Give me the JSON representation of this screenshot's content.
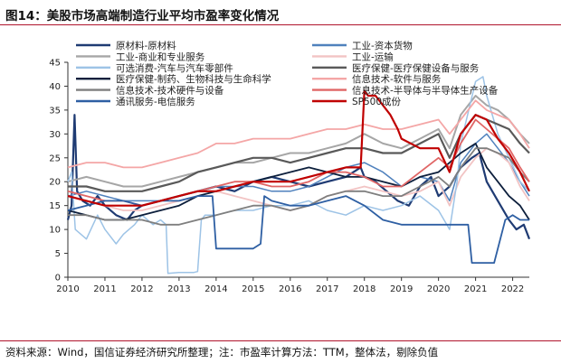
{
  "title": "图14：美股市场高端制造行业平均市盈率变化情况",
  "footnote": "资料来源：Wind，国信证券经济研究所整理；注：市盈率计算方法：TTM，整体法，剔除负值",
  "chart_data": {
    "type": "line",
    "title": "",
    "xlabel": "",
    "ylabel": "",
    "xlim": [
      2010.0,
      2022.45
    ],
    "ylim": [
      0,
      45
    ],
    "x_ticks": [
      "2010",
      "2011",
      "2012",
      "2013",
      "2014",
      "2015",
      "2016",
      "2017",
      "2018",
      "2019",
      "2020",
      "2021",
      "2022"
    ],
    "y_ticks": [
      "0",
      "5",
      "10",
      "15",
      "20",
      "25",
      "30",
      "35",
      "40",
      "45"
    ],
    "grid": false,
    "legend_position": "top",
    "series": [
      {
        "name": "原材料-原材料",
        "color": "#1f3b73",
        "width": 2.2,
        "x": [
          2010,
          2010.1,
          2010.18,
          2010.25,
          2010.4,
          2010.6,
          2010.8,
          2011,
          2011.3,
          2011.6,
          2011.8,
          2012,
          2012.5,
          2013,
          2013.5,
          2014,
          2014.5,
          2015,
          2015.5,
          2016,
          2016.5,
          2017,
          2017.5,
          2017.9,
          2018,
          2018.3,
          2018.6,
          2018.9,
          2019.2,
          2019.5,
          2019.8,
          2020,
          2020.3,
          2020.6,
          2020.9,
          2021.1,
          2021.3,
          2021.6,
          2021.9,
          2022.1,
          2022.3,
          2022.45
        ],
        "y": [
          12,
          15,
          34,
          18,
          16,
          15,
          17,
          15,
          13,
          12,
          14,
          15,
          16,
          17,
          18,
          19,
          18,
          20,
          21,
          20,
          19,
          20,
          21,
          23,
          21,
          20,
          18,
          16,
          15,
          19,
          21,
          17,
          19,
          23,
          25,
          26,
          20,
          16,
          12,
          10,
          11,
          8
        ]
      },
      {
        "name": "工业-资本货物",
        "color": "#4f81bd",
        "width": 1.5,
        "x": [
          2010,
          2010.5,
          2011,
          2011.5,
          2012,
          2012.5,
          2013,
          2013.5,
          2014,
          2014.5,
          2015,
          2015.5,
          2016,
          2016.5,
          2017,
          2017.5,
          2018,
          2018.5,
          2019,
          2019.5,
          2020,
          2020.3,
          2020.6,
          2021,
          2021.3,
          2021.6,
          2021.9,
          2022.2,
          2022.45
        ],
        "y": [
          17,
          18,
          17,
          16,
          16,
          16,
          17,
          18,
          19,
          19,
          19,
          18,
          18,
          19,
          21,
          23,
          24,
          22,
          19,
          21,
          20,
          16,
          24,
          28,
          30,
          27,
          24,
          20,
          17
        ]
      },
      {
        "name": "工业-商业和专业服务",
        "color": "#a6a6a6",
        "width": 2.0,
        "x": [
          2010,
          2010.5,
          2011,
          2011.5,
          2012,
          2012.5,
          2013,
          2013.5,
          2014,
          2014.5,
          2015,
          2015.5,
          2016,
          2016.5,
          2017,
          2017.5,
          2018,
          2018.5,
          2019,
          2019.5,
          2020,
          2020.3,
          2020.6,
          2021,
          2021.3,
          2021.6,
          2021.9,
          2022.2,
          2022.45
        ],
        "y": [
          20,
          21,
          20,
          19,
          19,
          20,
          21,
          22,
          23,
          24,
          24,
          25,
          26,
          26,
          27,
          28,
          30,
          28,
          27,
          29,
          31,
          27,
          34,
          38,
          36,
          35,
          33,
          30,
          28
        ]
      },
      {
        "name": "工业-运输",
        "color": "#f2c4c4",
        "width": 1.8,
        "x": [
          2010,
          2010.5,
          2011,
          2011.5,
          2012,
          2012.5,
          2013,
          2013.5,
          2014,
          2014.5,
          2015,
          2015.5,
          2016,
          2016.5,
          2017,
          2017.5,
          2018,
          2018.5,
          2019,
          2019.5,
          2020,
          2020.3,
          2020.6,
          2021,
          2021.3,
          2021.6,
          2021.9,
          2022.2,
          2022.45
        ],
        "y": [
          17,
          16,
          15,
          14,
          14,
          15,
          16,
          17,
          18,
          17,
          16,
          15,
          14,
          15,
          17,
          18,
          19,
          18,
          17,
          18,
          20,
          15,
          21,
          25,
          27,
          26,
          24,
          19,
          16
        ]
      },
      {
        "name": "可选消费-汽车与汽车零部件",
        "color": "#9dc3e6",
        "width": 1.5,
        "x": [
          2010,
          2010.1,
          2010.2,
          2010.5,
          2010.8,
          2011,
          2011.3,
          2011.5,
          2011.8,
          2012,
          2012.3,
          2012.5,
          2012.65,
          2012.7,
          2013,
          2013.2,
          2013.4,
          2013.5,
          2013.6,
          2013.7,
          2014,
          2014.5,
          2015,
          2015.5,
          2016,
          2016.5,
          2017,
          2017.5,
          2018,
          2018.5,
          2019,
          2019.5,
          2020,
          2020.3,
          2020.5,
          2020.6,
          2021,
          2021.2,
          2021.3,
          2021.6,
          2021.9,
          2022.2,
          2022.45
        ],
        "y": [
          20,
          22,
          10,
          8,
          13,
          10,
          7,
          9,
          11,
          13,
          11,
          12,
          11,
          0.8,
          1,
          1,
          1,
          1.2,
          12,
          13,
          13,
          14,
          14,
          15,
          15,
          16,
          14,
          13,
          15,
          14,
          15,
          17,
          14,
          10,
          20,
          28,
          41,
          42,
          38,
          30,
          25,
          20,
          18
        ]
      },
      {
        "name": "医疗保健-医疗保健设备与服务",
        "color": "#595959",
        "width": 2.2,
        "x": [
          2010,
          2010.5,
          2011,
          2011.5,
          2012,
          2012.5,
          2013,
          2013.5,
          2014,
          2014.5,
          2015,
          2015.5,
          2016,
          2016.5,
          2017,
          2017.5,
          2018,
          2018.5,
          2019,
          2019.5,
          2020,
          2020.3,
          2020.6,
          2021,
          2021.3,
          2021.6,
          2021.9,
          2022.2,
          2022.45
        ],
        "y": [
          19,
          19,
          18,
          18,
          18,
          19,
          20,
          22,
          23,
          24,
          25,
          25,
          24,
          25,
          26,
          27,
          27,
          26,
          26,
          28,
          30,
          25,
          30,
          34,
          33,
          32,
          31,
          28,
          26
        ]
      },
      {
        "name": "医疗保健-制药、生物科技与生命科学",
        "color": "#0d1f3c",
        "width": 1.8,
        "x": [
          2010,
          2010.5,
          2011,
          2011.5,
          2012,
          2012.5,
          2013,
          2013.5,
          2014,
          2014.5,
          2015,
          2015.5,
          2016,
          2016.5,
          2017,
          2017.5,
          2018,
          2018.5,
          2019,
          2019.5,
          2020,
          2020.3,
          2020.6,
          2021,
          2021.3,
          2021.6,
          2021.9,
          2022.2,
          2022.45
        ],
        "y": [
          14,
          13,
          12,
          12,
          13,
          14,
          15,
          17,
          18,
          19,
          20,
          21,
          22,
          23,
          22,
          21,
          21,
          20,
          19,
          21,
          22,
          24,
          26,
          28,
          23,
          20,
          17,
          15,
          12
        ]
      },
      {
        "name": "信息技术-软件与服务",
        "color": "#f4a6a6",
        "width": 1.8,
        "x": [
          2010,
          2010.5,
          2011,
          2011.5,
          2012,
          2012.5,
          2013,
          2013.5,
          2014,
          2014.5,
          2015,
          2015.5,
          2016,
          2016.5,
          2017,
          2017.5,
          2018,
          2018.5,
          2019,
          2019.5,
          2020,
          2020.3,
          2020.6,
          2021,
          2021.3,
          2021.6,
          2021.9,
          2022.2,
          2022.45
        ],
        "y": [
          23,
          24,
          24,
          23,
          23,
          24,
          25,
          26,
          28,
          28,
          29,
          29,
          29,
          30,
          31,
          31,
          32,
          31,
          31,
          32,
          33,
          30,
          33,
          37,
          35,
          34,
          33,
          30,
          27
        ]
      },
      {
        "name": "信息技术-技术硬件与设备",
        "color": "#7f7f7f",
        "width": 1.8,
        "x": [
          2010,
          2010.5,
          2011,
          2011.5,
          2012,
          2012.5,
          2013,
          2013.5,
          2014,
          2014.5,
          2015,
          2015.5,
          2016,
          2016.5,
          2017,
          2017.5,
          2018,
          2018.5,
          2019,
          2019.5,
          2020,
          2020.3,
          2020.6,
          2021,
          2021.3,
          2021.6,
          2021.9,
          2022.2,
          2022.45
        ],
        "y": [
          13,
          13,
          12,
          12,
          12,
          11,
          11,
          12,
          13,
          14,
          15,
          15,
          14,
          15,
          17,
          18,
          18,
          17,
          17,
          19,
          21,
          19,
          23,
          27,
          27,
          26,
          25,
          22,
          20
        ]
      },
      {
        "name": "信息技术-半导体与半导体生产设备",
        "color": "#e06666",
        "width": 1.8,
        "x": [
          2010,
          2010.5,
          2011,
          2011.5,
          2012,
          2012.5,
          2013,
          2013.5,
          2014,
          2014.5,
          2015,
          2015.5,
          2016,
          2016.5,
          2017,
          2017.5,
          2018,
          2018.5,
          2019,
          2019.5,
          2020,
          2020.3,
          2020.6,
          2021,
          2021.3,
          2021.6,
          2021.9,
          2022.2,
          2022.45
        ],
        "y": [
          18,
          17,
          16,
          16,
          15,
          16,
          17,
          18,
          19,
          20,
          20,
          19,
          19,
          20,
          22,
          22,
          21,
          19,
          19,
          22,
          25,
          23,
          28,
          33,
          31,
          29,
          27,
          23,
          20
        ]
      },
      {
        "name": "通讯服务-电信服务",
        "color": "#2e5fa3",
        "width": 1.8,
        "x": [
          2010,
          2010.5,
          2011,
          2011.5,
          2012,
          2012.5,
          2013,
          2013.5,
          2013.9,
          2014,
          2014.1,
          2014.5,
          2015,
          2015.2,
          2015.3,
          2015.5,
          2016,
          2016.5,
          2017,
          2017.5,
          2018,
          2018.5,
          2019,
          2019.5,
          2020,
          2020.5,
          2020.8,
          2020.9,
          2021,
          2021.2,
          2021.3,
          2021.5,
          2021.8,
          2022,
          2022.2,
          2022.45
        ],
        "y": [
          14,
          15,
          16,
          16,
          15,
          16,
          16,
          17,
          17,
          6,
          6,
          6,
          6,
          7,
          17,
          16,
          15,
          15,
          16,
          17,
          15,
          12,
          11,
          11,
          11,
          11,
          11,
          3,
          3,
          3,
          3,
          3,
          12,
          13,
          12,
          12
        ]
      },
      {
        "name": "SP500成份",
        "color": "#c00000",
        "width": 2.2,
        "x": [
          2010,
          2010.5,
          2011,
          2011.5,
          2012,
          2012.5,
          2013,
          2013.5,
          2014,
          2014.5,
          2015,
          2015.5,
          2016,
          2016.5,
          2017,
          2017.5,
          2017.9,
          2018,
          2018.1,
          2018.3,
          2018.5,
          2018.7,
          2018.9,
          2019,
          2019.5,
          2020,
          2020.3,
          2020.6,
          2021,
          2021.3,
          2021.6,
          2021.9,
          2022.2,
          2022.45
        ],
        "y": [
          17,
          16,
          15,
          15,
          15,
          16,
          17,
          18,
          18,
          19,
          20,
          20,
          20,
          21,
          22,
          23,
          23,
          39,
          38,
          38,
          36,
          34,
          31,
          29,
          27,
          27,
          22,
          30,
          34,
          33,
          29,
          26,
          22,
          18
        ]
      }
    ]
  }
}
